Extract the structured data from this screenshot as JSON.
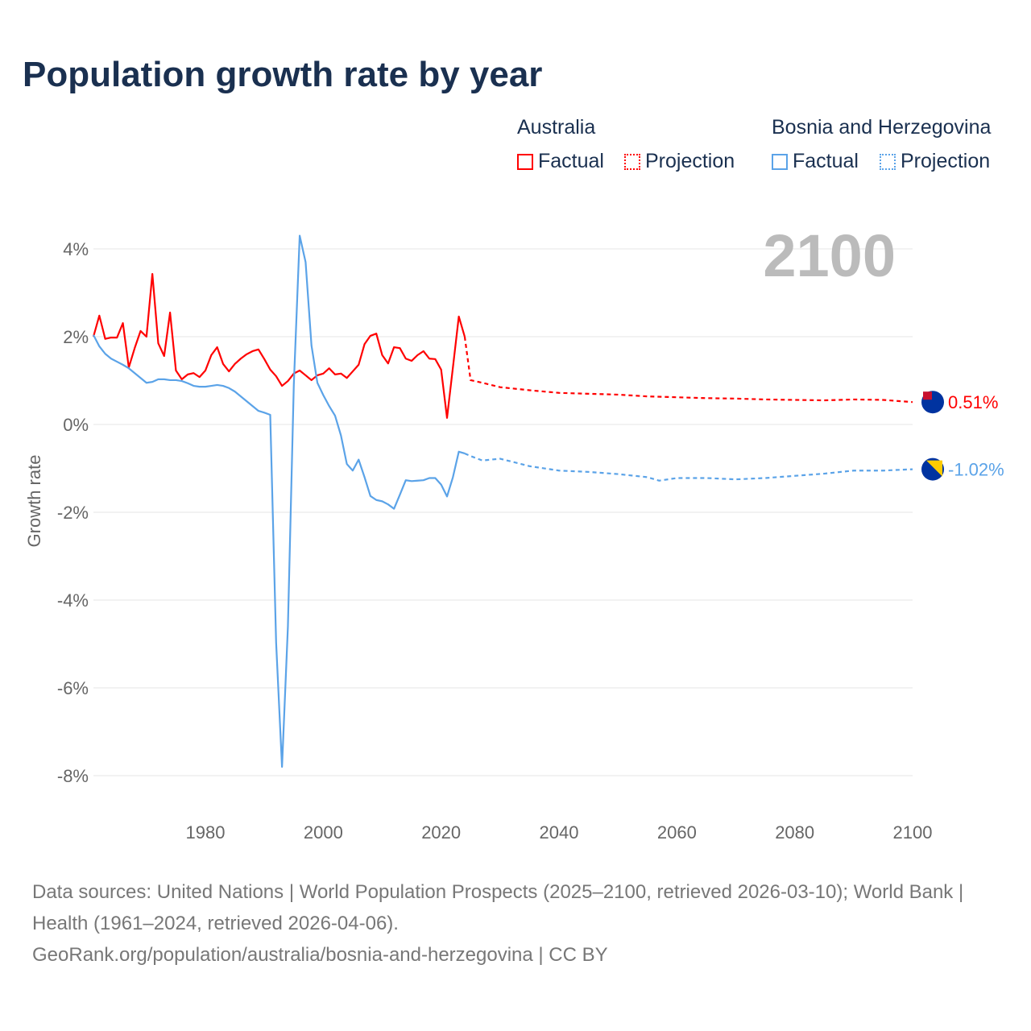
{
  "chart_data": {
    "type": "line",
    "title": "Population growth rate by year",
    "ylabel": "Growth rate",
    "xlim": [
      1961,
      2100
    ],
    "ylim": [
      -8,
      4.4
    ],
    "yticks": [
      {
        "v": 4,
        "label": "4%"
      },
      {
        "v": 2,
        "label": "2%"
      },
      {
        "v": 0,
        "label": "0%"
      },
      {
        "v": -2,
        "label": "-2%"
      },
      {
        "v": -4,
        "label": "-4%"
      },
      {
        "v": -6,
        "label": "-6%"
      },
      {
        "v": -8,
        "label": "-8%"
      }
    ],
    "xticks": [
      {
        "v": 1980,
        "label": "1980"
      },
      {
        "v": 2000,
        "label": "2000"
      },
      {
        "v": 2020,
        "label": "2020"
      },
      {
        "v": 2040,
        "label": "2040"
      },
      {
        "v": 2060,
        "label": "2060"
      },
      {
        "v": 2080,
        "label": "2080"
      },
      {
        "v": 2100,
        "label": "2100"
      }
    ],
    "year_display": "2100",
    "series": [
      {
        "name": "Australia",
        "color": "#ff0000",
        "end_label": "0.51%",
        "factual": {
          "start": 1961,
          "values": [
            2.0,
            2.48,
            1.95,
            1.98,
            1.98,
            2.31,
            1.3,
            1.74,
            2.13,
            2.0,
            3.43,
            1.85,
            1.56,
            2.55,
            1.23,
            1.03,
            1.14,
            1.17,
            1.08,
            1.23,
            1.58,
            1.76,
            1.38,
            1.21,
            1.38,
            1.5,
            1.6,
            1.67,
            1.71,
            1.49,
            1.25,
            1.1,
            0.88,
            0.99,
            1.16,
            1.23,
            1.12,
            1.01,
            1.12,
            1.16,
            1.28,
            1.14,
            1.16,
            1.06,
            1.21,
            1.36,
            1.83,
            2.02,
            2.07,
            1.58,
            1.39,
            1.76,
            1.74,
            1.5,
            1.45,
            1.58,
            1.67,
            1.5,
            1.49,
            1.25,
            0.15,
            1.3,
            2.46,
            2.0
          ]
        },
        "projection": {
          "x": [
            2024,
            2025,
            2027,
            2030,
            2035,
            2040,
            2045,
            2050,
            2055,
            2060,
            2065,
            2070,
            2075,
            2080,
            2085,
            2090,
            2095,
            2100
          ],
          "values": [
            2.0,
            1.01,
            0.95,
            0.85,
            0.78,
            0.72,
            0.7,
            0.68,
            0.64,
            0.62,
            0.6,
            0.59,
            0.57,
            0.56,
            0.55,
            0.57,
            0.56,
            0.51
          ]
        }
      },
      {
        "name": "Bosnia and Herzegovina",
        "color": "#5ba3e8",
        "end_label": "-1.02%",
        "factual": {
          "start": 1961,
          "values": [
            2.04,
            1.78,
            1.61,
            1.5,
            1.43,
            1.36,
            1.28,
            1.17,
            1.06,
            0.95,
            0.97,
            1.03,
            1.03,
            1.01,
            1.01,
            0.99,
            0.94,
            0.88,
            0.86,
            0.86,
            0.88,
            0.9,
            0.88,
            0.83,
            0.75,
            0.64,
            0.53,
            0.42,
            0.31,
            0.27,
            0.22,
            -4.97,
            -7.8,
            -4.6,
            0.9,
            4.3,
            3.7,
            1.8,
            0.95,
            0.67,
            0.42,
            0.2,
            -0.25,
            -0.9,
            -1.05,
            -0.8,
            -1.2,
            -1.63,
            -1.72,
            -1.75,
            -1.82,
            -1.92,
            -1.6,
            -1.27,
            -1.29,
            -1.28,
            -1.27,
            -1.22,
            -1.22,
            -1.37,
            -1.64,
            -1.2,
            -0.62,
            -0.66
          ]
        },
        "projection": {
          "x": [
            2024,
            2025,
            2027,
            2030,
            2033,
            2035,
            2040,
            2045,
            2050,
            2055,
            2057,
            2060,
            2065,
            2070,
            2075,
            2080,
            2085,
            2090,
            2095,
            2100
          ],
          "values": [
            -0.66,
            -0.72,
            -0.82,
            -0.78,
            -0.88,
            -0.95,
            -1.05,
            -1.08,
            -1.13,
            -1.2,
            -1.28,
            -1.22,
            -1.22,
            -1.25,
            -1.22,
            -1.17,
            -1.12,
            -1.05,
            -1.05,
            -1.02
          ]
        }
      }
    ]
  },
  "legend": {
    "australia": "Australia",
    "bosnia": "Bosnia and Herzegovina",
    "factual": "Factual",
    "projection": "Projection"
  },
  "footer": {
    "line1": "Data sources: United Nations | World Population Prospects (2025–2100, retrieved 2026-03-10); World Bank | Health (1961–2024, retrieved 2026-04-06).",
    "line2": "GeoRank.org/population/australia/bosnia-and-herzegovina | CC BY"
  }
}
